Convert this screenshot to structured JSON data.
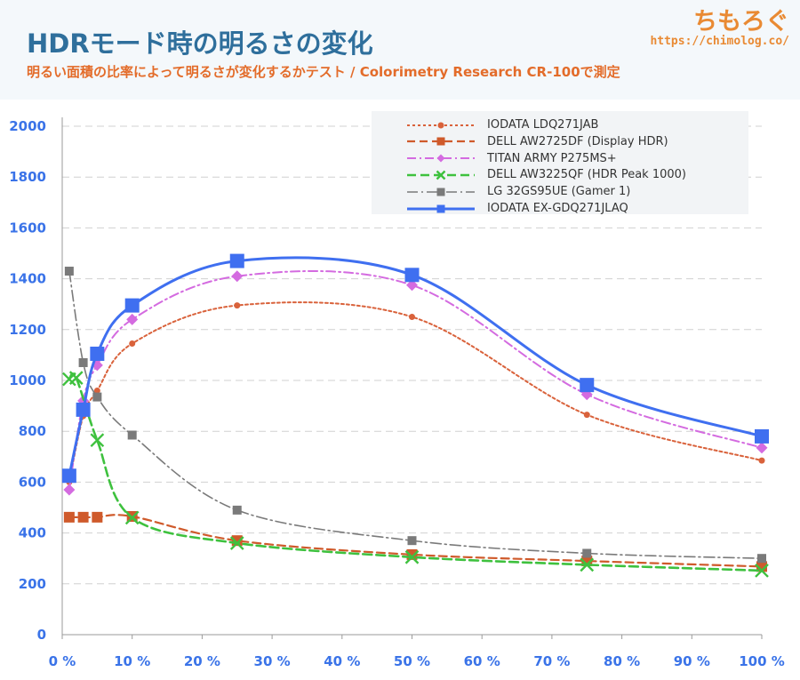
{
  "header": {
    "title": "HDRモード時の明るさの変化",
    "subtitle": "明るい面積の比率によって明るさが変化するかテスト / Colorimetry Research CR-100で測定",
    "brand_name": "ちもろぐ",
    "brand_url": "https://chimolog.co/"
  },
  "chart_data": {
    "type": "line",
    "title": "HDRモード時の明るさの変化",
    "subtitle": "明るい面積の比率によって明るさが変化するかテスト / Colorimetry Research CR-100で測定",
    "xlabel": "",
    "ylabel": "",
    "xlim": [
      0,
      100
    ],
    "ylim": [
      0,
      2000
    ],
    "x_ticks": [
      0,
      10,
      20,
      30,
      40,
      50,
      60,
      70,
      80,
      90,
      100
    ],
    "x_tick_labels": [
      "0 %",
      "10 %",
      "20 %",
      "30 %",
      "40 %",
      "50 %",
      "60 %",
      "70 %",
      "80 %",
      "90 %",
      "100 %"
    ],
    "y_ticks": [
      0,
      200,
      400,
      600,
      800,
      1000,
      1200,
      1400,
      1600,
      1800,
      2000
    ],
    "y_tick_labels": [
      "0",
      "200",
      "400",
      "600",
      "800",
      "1000",
      "1200",
      "1400",
      "1600",
      "1800",
      "2000"
    ],
    "grid": "horizontal dashed",
    "legend_position": "top-right",
    "series": [
      {
        "name": "IODATA LDQ271JAB",
        "color": "#d9623b",
        "dash": "3,3",
        "marker": "circle",
        "marker_size": 3.5,
        "width": 2,
        "points": [
          [
            1,
            600
          ],
          [
            3,
            860
          ],
          [
            5,
            960
          ],
          [
            10,
            1145
          ],
          [
            25,
            1295
          ],
          [
            50,
            1250
          ],
          [
            75,
            865
          ],
          [
            100,
            685
          ]
        ]
      },
      {
        "name": "DELL AW2725DF (Display HDR)",
        "color": "#cf5a2b",
        "dash": "9,5",
        "marker": "square",
        "marker_size": 6,
        "width": 2.2,
        "points": [
          [
            1,
            462
          ],
          [
            3,
            462
          ],
          [
            5,
            462
          ],
          [
            10,
            465
          ],
          [
            25,
            370
          ],
          [
            50,
            315
          ],
          [
            75,
            290
          ],
          [
            100,
            268
          ]
        ]
      },
      {
        "name": "TITAN ARMY P275MS+",
        "color": "#d46be0",
        "dash": "10,4,2,4",
        "marker": "diamond",
        "marker_size": 6.5,
        "width": 2,
        "points": [
          [
            1,
            570
          ],
          [
            3,
            920
          ],
          [
            5,
            1060
          ],
          [
            10,
            1240
          ],
          [
            25,
            1410
          ],
          [
            50,
            1375
          ],
          [
            75,
            945
          ],
          [
            100,
            735
          ]
        ]
      },
      {
        "name": "DELL AW3225QF (HDR Peak 1000)",
        "color": "#3ec13e",
        "dash": "10,5",
        "marker": "x",
        "marker_size": 7,
        "width": 2.6,
        "points": [
          [
            1,
            1005
          ],
          [
            2,
            1010
          ],
          [
            5,
            765
          ],
          [
            10,
            460
          ],
          [
            25,
            360
          ],
          [
            50,
            305
          ],
          [
            75,
            275
          ],
          [
            100,
            252
          ]
        ]
      },
      {
        "name": "LG 32GS95UE (Gamer 1)",
        "color": "#7a7a7a",
        "dash": "12,4,2,4",
        "marker": "square",
        "marker_size": 5,
        "width": 1.6,
        "points": [
          [
            1,
            1430
          ],
          [
            3,
            1070
          ],
          [
            5,
            935
          ],
          [
            10,
            785
          ],
          [
            25,
            490
          ],
          [
            50,
            370
          ],
          [
            75,
            320
          ],
          [
            100,
            300
          ]
        ]
      },
      {
        "name": "IODATA EX-GDQ271JLAQ",
        "color": "#3f6ff0",
        "dash": "",
        "marker": "square",
        "marker_size": 8,
        "width": 3,
        "points": [
          [
            1,
            625
          ],
          [
            3,
            885
          ],
          [
            5,
            1105
          ],
          [
            10,
            1295
          ],
          [
            25,
            1470
          ],
          [
            50,
            1415
          ],
          [
            75,
            982
          ],
          [
            100,
            780
          ]
        ]
      }
    ]
  }
}
